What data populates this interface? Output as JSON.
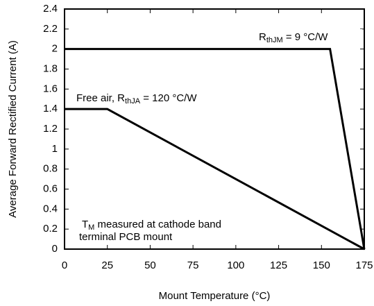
{
  "chart_data": {
    "type": "line",
    "x_label": "Mount Temperature (°C)",
    "y_label": "Average Forward Rectified Current (A)",
    "xlim": [
      0,
      175
    ],
    "xticks": [
      0,
      25,
      50,
      75,
      100,
      125,
      150,
      175
    ],
    "ylim": [
      0,
      2.4
    ],
    "yticks": [
      0,
      0.2,
      0.4,
      0.6,
      0.8,
      1,
      1.2,
      1.4,
      1.6,
      1.8,
      2,
      2.2,
      2.4
    ],
    "grid": false,
    "series": [
      {
        "color": "#000000",
        "x": [
          0,
          25,
          175
        ],
        "values": [
          1.4,
          1.4,
          0
        ]
      },
      {
        "color": "#000000",
        "x": [
          0,
          155,
          175
        ],
        "values": [
          2,
          2,
          0
        ]
      }
    ],
    "annotations": [
      [
        "R",
        "thJM",
        " = 9 °C/W"
      ],
      [
        "Free air, R",
        "thJA",
        " = 120 °C/W"
      ],
      [
        "T",
        "M",
        " measured at cathode band"
      ],
      [
        "terminal PCB mount"
      ]
    ]
  }
}
